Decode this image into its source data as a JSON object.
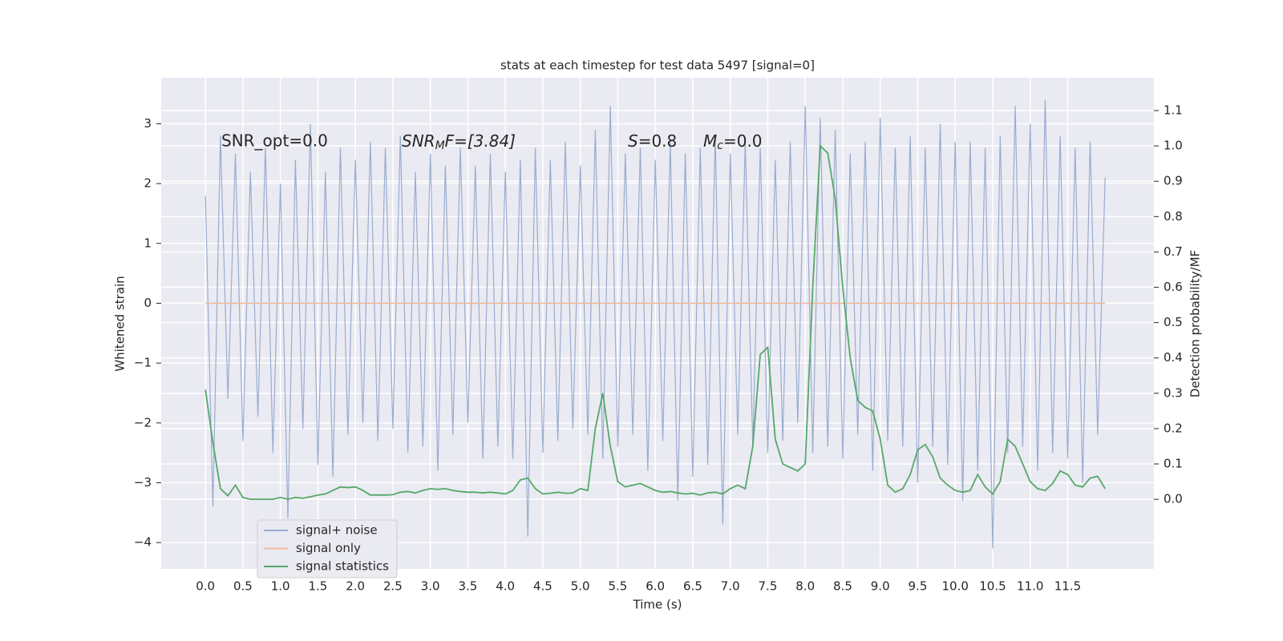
{
  "chart_data": {
    "type": "line",
    "title": "stats at each timestep for test data 5497 [signal=0]",
    "xlabel": "Time (s)",
    "ylabel": "Whitened strain",
    "y2label": "Detection probability/MF",
    "annotations": [
      {
        "text": "SNR_opt=0.0"
      },
      {
        "main": "SNR",
        "sub": "M",
        "rest": "F=[3.84]"
      },
      {
        "main": "S",
        "rest": "=0.8"
      },
      {
        "main": "M",
        "sub": "c",
        "rest": "=0.0"
      }
    ],
    "x": [
      0,
      0.1,
      0.2,
      0.3,
      0.4,
      0.5,
      0.6,
      0.7,
      0.8,
      0.9,
      1,
      1.1,
      1.2,
      1.3,
      1.4,
      1.5,
      1.6,
      1.7,
      1.8,
      1.9,
      2,
      2.1,
      2.2,
      2.3,
      2.4,
      2.5,
      2.6,
      2.7,
      2.8,
      2.9,
      3,
      3.1,
      3.2,
      3.3,
      3.4,
      3.5,
      3.6,
      3.7,
      3.8,
      3.9,
      4,
      4.1,
      4.2,
      4.3,
      4.4,
      4.5,
      4.6,
      4.7,
      4.8,
      4.9,
      5,
      5.1,
      5.2,
      5.3,
      5.4,
      5.5,
      5.6,
      5.7,
      5.8,
      5.9,
      6,
      6.1,
      6.2,
      6.3,
      6.4,
      6.5,
      6.6,
      6.7,
      6.8,
      6.9,
      7,
      7.1,
      7.2,
      7.3,
      7.4,
      7.5,
      7.6,
      7.7,
      7.8,
      7.9,
      8,
      8.1,
      8.2,
      8.3,
      8.4,
      8.5,
      8.6,
      8.7,
      8.8,
      8.9,
      9,
      9.1,
      9.2,
      9.3,
      9.4,
      9.5,
      9.6,
      9.7,
      9.8,
      9.9,
      10,
      10.1,
      10.2,
      10.3,
      10.4,
      10.5,
      10.6,
      10.7,
      10.8,
      10.9,
      11,
      11.1,
      11.2,
      11.3,
      11.4,
      11.5,
      11.6,
      11.7,
      11.8,
      11.9,
      12
    ],
    "series": [
      {
        "name": "signal+ noise",
        "color": "#9aaccf",
        "values": [
          1.8,
          -3.4,
          2.8,
          -1.6,
          2.5,
          -2.3,
          2.2,
          -1.9,
          2.6,
          -2.5,
          2.0,
          -3.6,
          2.4,
          -2.1,
          3.0,
          -2.7,
          2.2,
          -2.9,
          2.6,
          -2.2,
          2.4,
          -2.0,
          2.7,
          -2.3,
          2.6,
          -2.1,
          2.8,
          -2.5,
          2.2,
          -2.4,
          2.5,
          -2.8,
          2.3,
          -2.2,
          2.6,
          -2.0,
          2.3,
          -2.6,
          2.5,
          -2.4,
          2.2,
          -2.6,
          2.4,
          -3.9,
          2.6,
          -2.5,
          2.4,
          -2.3,
          2.7,
          -2.1,
          2.3,
          -2.2,
          2.9,
          -2.6,
          3.3,
          -2.4,
          2.5,
          -2.2,
          2.6,
          -2.8,
          2.4,
          -2.3,
          2.7,
          -3.3,
          2.5,
          -2.9,
          2.6,
          -2.7,
          2.8,
          -3.7,
          2.5,
          -2.2,
          2.7,
          -2.4,
          2.6,
          -2.5,
          2.4,
          -2.3,
          2.7,
          -2.0,
          3.3,
          -2.5,
          3.1,
          -2.4,
          2.9,
          -2.6,
          2.5,
          -2.2,
          2.7,
          -2.8,
          3.1,
          -2.3,
          2.6,
          -2.4,
          2.8,
          -3.0,
          2.6,
          -2.4,
          3.0,
          -2.7,
          2.7,
          -3.3,
          2.7,
          -2.8,
          2.6,
          -4.1,
          2.8,
          -2.5,
          3.3,
          -2.4,
          3.0,
          -2.8,
          3.4,
          -2.5,
          2.8,
          -2.6,
          2.6,
          -3.0,
          2.7,
          -2.2,
          2.1
        ]
      },
      {
        "name": "signal only",
        "color": "#eeb9a0",
        "values": [
          0,
          0,
          0,
          0,
          0,
          0,
          0,
          0,
          0,
          0,
          0,
          0,
          0,
          0,
          0,
          0,
          0,
          0,
          0,
          0,
          0,
          0,
          0,
          0,
          0,
          0,
          0,
          0,
          0,
          0,
          0,
          0,
          0,
          0,
          0,
          0,
          0,
          0,
          0,
          0,
          0,
          0,
          0,
          0,
          0,
          0,
          0,
          0,
          0,
          0,
          0,
          0,
          0,
          0,
          0,
          0,
          0,
          0,
          0,
          0,
          0,
          0,
          0,
          0,
          0,
          0,
          0,
          0,
          0,
          0,
          0,
          0,
          0,
          0,
          0,
          0,
          0,
          0,
          0,
          0,
          0,
          0,
          0,
          0,
          0,
          0,
          0,
          0,
          0,
          0,
          0,
          0,
          0,
          0,
          0,
          0,
          0,
          0,
          0,
          0,
          0,
          0,
          0,
          0,
          0,
          0,
          0,
          0,
          0,
          0,
          0,
          0,
          0,
          0,
          0,
          0,
          0,
          0,
          0,
          0,
          0
        ]
      },
      {
        "name": "signal statistics",
        "color": "#55a868",
        "axis": "y2",
        "values": [
          0.31,
          0.16,
          0.03,
          0.01,
          0.04,
          0.005,
          0,
          0,
          0,
          0,
          0.005,
          0,
          0.005,
          0.003,
          0.007,
          0.012,
          0.015,
          0.025,
          0.035,
          0.033,
          0.035,
          0.025,
          0.012,
          0.012,
          0.012,
          0.013,
          0.02,
          0.022,
          0.018,
          0.025,
          0.03,
          0.028,
          0.03,
          0.025,
          0.022,
          0.02,
          0.02,
          0.018,
          0.02,
          0.018,
          0.015,
          0.025,
          0.055,
          0.06,
          0.03,
          0.015,
          0.017,
          0.02,
          0.017,
          0.018,
          0.03,
          0.025,
          0.2,
          0.3,
          0.15,
          0.05,
          0.035,
          0.04,
          0.045,
          0.035,
          0.025,
          0.02,
          0.022,
          0.018,
          0.015,
          0.017,
          0.012,
          0.018,
          0.02,
          0.015,
          0.03,
          0.04,
          0.03,
          0.15,
          0.41,
          0.43,
          0.17,
          0.1,
          0.09,
          0.08,
          0.1,
          0.6,
          1.0,
          0.98,
          0.85,
          0.6,
          0.4,
          0.28,
          0.26,
          0.25,
          0.17,
          0.04,
          0.02,
          0.03,
          0.07,
          0.14,
          0.155,
          0.12,
          0.06,
          0.04,
          0.025,
          0.02,
          0.025,
          0.07,
          0.035,
          0.015,
          0.05,
          0.17,
          0.15,
          0.1,
          0.05,
          0.03,
          0.025,
          0.045,
          0.08,
          0.07,
          0.04,
          0.035,
          0.06,
          0.065,
          0.03
        ]
      }
    ],
    "xlim": [
      -0.59,
      12.65
    ],
    "ylim": [
      -4.44,
      3.77
    ],
    "y2lim": [
      -0.197,
      1.193
    ],
    "xticks": [
      {
        "value": 0,
        "label": "0.0"
      },
      {
        "value": 0.5,
        "label": "0.5"
      },
      {
        "value": 1,
        "label": "1.0"
      },
      {
        "value": 1.5,
        "label": "1.5"
      },
      {
        "value": 2,
        "label": "2.0"
      },
      {
        "value": 2.5,
        "label": "2.5"
      },
      {
        "value": 3,
        "label": "3.0"
      },
      {
        "value": 3.5,
        "label": "3.5"
      },
      {
        "value": 4,
        "label": "4.0"
      },
      {
        "value": 4.5,
        "label": "4.5"
      },
      {
        "value": 5,
        "label": "5.0"
      },
      {
        "value": 5.5,
        "label": "5.5"
      },
      {
        "value": 6,
        "label": "6.0"
      },
      {
        "value": 6.5,
        "label": "6.5"
      },
      {
        "value": 7,
        "label": "7.0"
      },
      {
        "value": 7.5,
        "label": "7.5"
      },
      {
        "value": 8,
        "label": "8.0"
      },
      {
        "value": 8.5,
        "label": "8.5"
      },
      {
        "value": 9,
        "label": "9.0"
      },
      {
        "value": 9.5,
        "label": "9.5"
      },
      {
        "value": 10,
        "label": "10.0"
      },
      {
        "value": 10.5,
        "label": "10.5"
      },
      {
        "value": 11,
        "label": "11.0"
      },
      {
        "value": 11.5,
        "label": "11.5"
      }
    ],
    "yticks": [
      {
        "value": -4,
        "label": "−4"
      },
      {
        "value": -3,
        "label": "−3"
      },
      {
        "value": -2,
        "label": "−2"
      },
      {
        "value": -1,
        "label": "−1"
      },
      0,
      1,
      2,
      3
    ],
    "y2ticks": [
      {
        "value": 0,
        "label": "0.0"
      },
      {
        "value": 0.1,
        "label": "0.1"
      },
      {
        "value": 0.2,
        "label": "0.2"
      },
      {
        "value": 0.3,
        "label": "0.3"
      },
      {
        "value": 0.4,
        "label": "0.4"
      },
      {
        "value": 0.5,
        "label": "0.5"
      },
      {
        "value": 0.6,
        "label": "0.6"
      },
      {
        "value": 0.7,
        "label": "0.7"
      },
      {
        "value": 0.8,
        "label": "0.8"
      },
      {
        "value": 0.9,
        "label": "0.9"
      },
      {
        "value": 1,
        "label": "1.0"
      },
      {
        "value": 1.1,
        "label": "1.1"
      }
    ],
    "grid": true,
    "legend": "lower left"
  }
}
